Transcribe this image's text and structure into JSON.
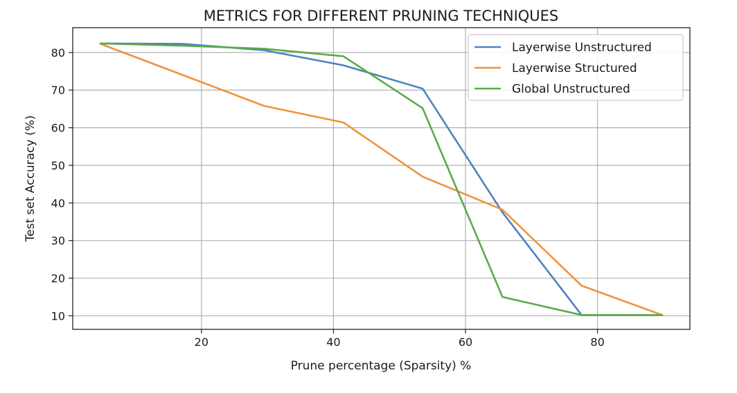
{
  "chart_data": {
    "type": "line",
    "title": "METRICS FOR DIFFERENT PRUNING TECHNIQUES",
    "xlabel": "Prune percentage (Sparsity) %",
    "ylabel": "Test set Accuracy (%)",
    "xlim": [
      0.5,
      94.0
    ],
    "ylim": [
      6.4,
      86.6
    ],
    "xticks": [
      20,
      40,
      60,
      80
    ],
    "yticks": [
      10,
      20,
      30,
      40,
      50,
      60,
      70,
      80
    ],
    "grid": true,
    "legend_position": "top-right",
    "series": [
      {
        "name": "Layerwise Unstructured",
        "color": "#4c82c0",
        "x": [
          4.7,
          17.2,
          29.5,
          41.5,
          53.5,
          65.6,
          77.6,
          89.8
        ],
        "y": [
          82.4,
          82.3,
          80.6,
          76.6,
          70.4,
          37.5,
          10.2,
          10.2
        ]
      },
      {
        "name": "Layerwise Structured",
        "color": "#f0923c",
        "x": [
          4.7,
          17.2,
          29.5,
          41.5,
          53.5,
          65.6,
          77.6,
          89.8
        ],
        "y": [
          82.3,
          74.0,
          65.8,
          61.4,
          47.0,
          38.2,
          18.0,
          10.2
        ]
      },
      {
        "name": "Global Unstructured",
        "color": "#5caa4c",
        "x": [
          4.7,
          17.2,
          29.5,
          41.5,
          53.5,
          65.6,
          77.6,
          89.8
        ],
        "y": [
          82.4,
          81.8,
          81.0,
          79.0,
          65.2,
          15.0,
          10.2,
          10.2
        ]
      }
    ]
  }
}
